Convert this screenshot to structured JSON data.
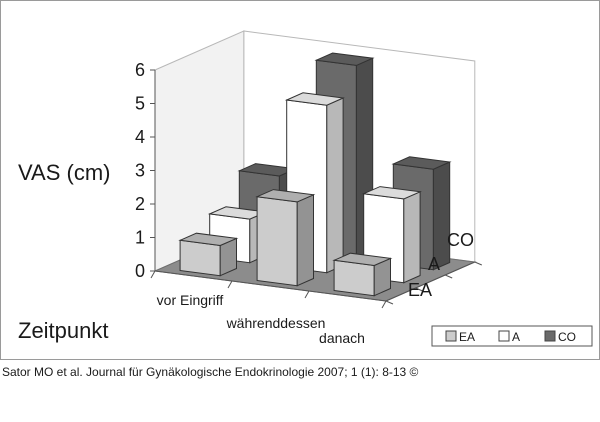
{
  "chart_data": {
    "type": "bar",
    "subtype": "3d-grouped-bar",
    "title": "",
    "ylabel": "VAS (cm)",
    "xlabel": "Zeitpunkt",
    "ylim": [
      0,
      6
    ],
    "yticks": [
      0,
      1,
      2,
      3,
      4,
      5,
      6
    ],
    "categories": [
      "vor Eingriff",
      "währenddessen",
      "danach"
    ],
    "series": [
      {
        "name": "EA",
        "color": "#cccccc",
        "values": [
          0.9,
          2.5,
          0.9
        ]
      },
      {
        "name": "A",
        "color": "#ffffff",
        "values": [
          1.3,
          5.0,
          2.5
        ]
      },
      {
        "name": "CO",
        "color": "#6a6a6a",
        "values": [
          2.2,
          5.8,
          3.0
        ]
      }
    ],
    "depth_labels": [
      "CO",
      "A",
      "EA"
    ],
    "legend": {
      "position": "bottom-right",
      "items": [
        {
          "label": "EA",
          "color": "#cccccc"
        },
        {
          "label": "A",
          "color": "#ffffff"
        },
        {
          "label": "CO",
          "color": "#6a6a6a"
        }
      ]
    },
    "grid": false
  },
  "caption": "Sator MO et al. Journal für Gynäkologische Endokrinologie 2007; 1 (1): 8-13 ©"
}
